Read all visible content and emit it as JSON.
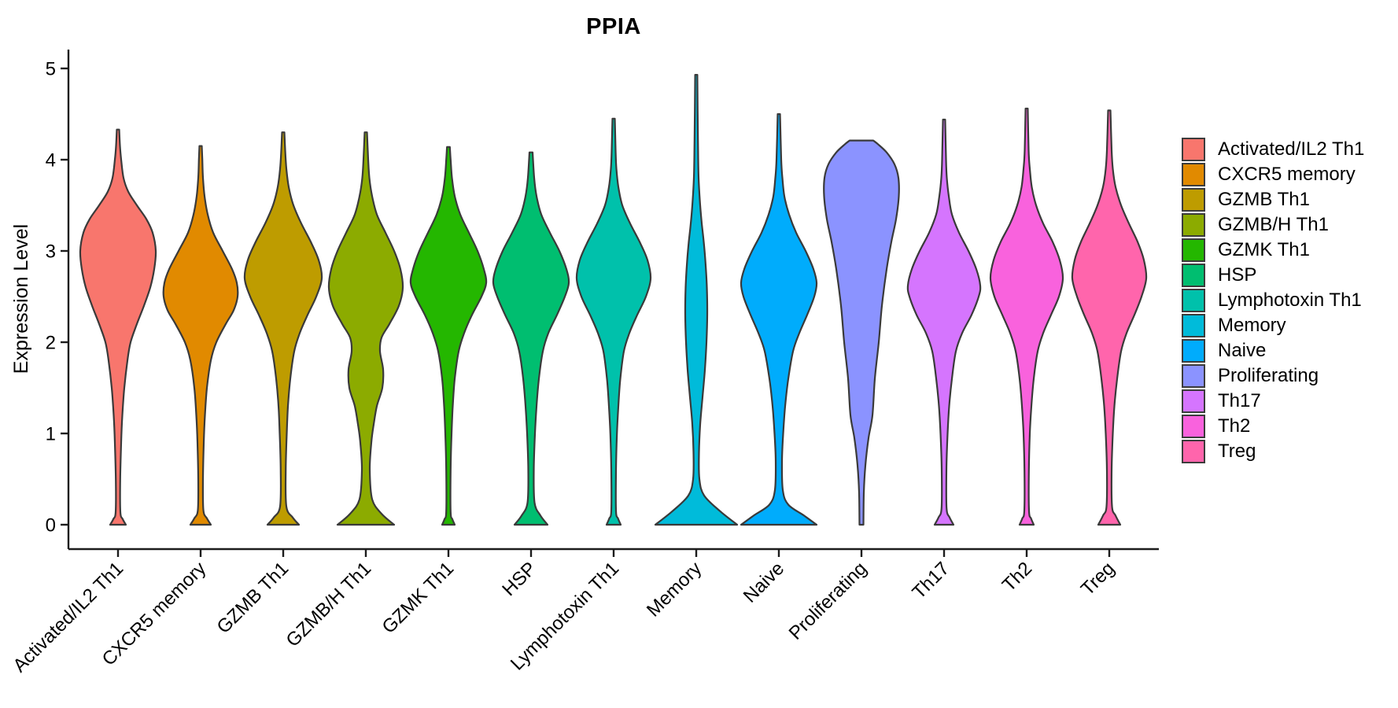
{
  "title": "PPIA",
  "y_axis": {
    "label": "Expression Level",
    "ticks": [
      "0",
      "1",
      "2",
      "3",
      "4",
      "5"
    ]
  },
  "x_axis": {
    "categories": [
      "Activated/IL2 Th1",
      "CXCR5 memory",
      "GZMB Th1",
      "GZMB/H Th1",
      "GZMK Th1",
      "HSP",
      "Lymphotoxin Th1",
      "Memory",
      "Naive",
      "Proliferating",
      "Th17",
      "Th2",
      "Treg"
    ]
  },
  "legend": {
    "items": [
      {
        "label": "Activated/IL2 Th1",
        "color": "#F8766D"
      },
      {
        "label": "CXCR5 memory",
        "color": "#E18A00"
      },
      {
        "label": "GZMB Th1",
        "color": "#BE9C00"
      },
      {
        "label": "GZMB/H Th1",
        "color": "#8CAB00"
      },
      {
        "label": "GZMK Th1",
        "color": "#24B700"
      },
      {
        "label": "HSP",
        "color": "#00BE70"
      },
      {
        "label": "Lymphotoxin Th1",
        "color": "#00C1AB"
      },
      {
        "label": "Memory",
        "color": "#00BBDA"
      },
      {
        "label": "Naive",
        "color": "#00ACFC"
      },
      {
        "label": "Proliferating",
        "color": "#8B93FF"
      },
      {
        "label": "Th17",
        "color": "#D575FE"
      },
      {
        "label": "Th2",
        "color": "#F962DD"
      },
      {
        "label": "Treg",
        "color": "#FF65AC"
      }
    ]
  },
  "chart_data": {
    "type": "violin",
    "title": "PPIA",
    "xlabel": "",
    "ylabel": "Expression Level",
    "ylim": [
      0,
      5
    ],
    "grid": false,
    "legend_position": "right",
    "outline_color": "#3A3A3A",
    "categories": [
      "Activated/IL2 Th1",
      "CXCR5 memory",
      "GZMB Th1",
      "GZMB/H Th1",
      "GZMK Th1",
      "HSP",
      "Lymphotoxin Th1",
      "Memory",
      "Naive",
      "Proliferating",
      "Th17",
      "Th2",
      "Treg"
    ],
    "series": [
      {
        "name": "Activated/IL2 Th1",
        "color": "#F8766D",
        "peak_expression": 4.33,
        "mode_expression": 3.0,
        "profile": [
          [
            0,
            10
          ],
          [
            0.06,
            6
          ],
          [
            0.14,
            3
          ],
          [
            0.5,
            2.8
          ],
          [
            0.9,
            4
          ],
          [
            1.2,
            5.5
          ],
          [
            1.5,
            8
          ],
          [
            1.8,
            12
          ],
          [
            2.0,
            16
          ],
          [
            2.2,
            24
          ],
          [
            2.4,
            33
          ],
          [
            2.6,
            41
          ],
          [
            2.8,
            46
          ],
          [
            3.0,
            48
          ],
          [
            3.2,
            44
          ],
          [
            3.35,
            36
          ],
          [
            3.5,
            24
          ],
          [
            3.65,
            13
          ],
          [
            3.8,
            7
          ],
          [
            4.0,
            4
          ],
          [
            4.15,
            2.5
          ],
          [
            4.33,
            1.5
          ]
        ]
      },
      {
        "name": "CXCR5 memory",
        "color": "#E18A00",
        "peak_expression": 4.15,
        "mode_expression": 2.5,
        "profile": [
          [
            0,
            13
          ],
          [
            0.07,
            8
          ],
          [
            0.16,
            3.5
          ],
          [
            0.5,
            3
          ],
          [
            0.9,
            4
          ],
          [
            1.2,
            5.5
          ],
          [
            1.5,
            8
          ],
          [
            1.8,
            13
          ],
          [
            2.0,
            20
          ],
          [
            2.2,
            32
          ],
          [
            2.35,
            42
          ],
          [
            2.5,
            47
          ],
          [
            2.65,
            46
          ],
          [
            2.8,
            40
          ],
          [
            3.0,
            28
          ],
          [
            3.2,
            16
          ],
          [
            3.4,
            9
          ],
          [
            3.6,
            5
          ],
          [
            3.8,
            3
          ],
          [
            4.0,
            2.2
          ],
          [
            4.15,
            1.5
          ]
        ]
      },
      {
        "name": "GZMB Th1",
        "color": "#BE9C00",
        "peak_expression": 4.3,
        "mode_expression": 2.7,
        "profile": [
          [
            0,
            20
          ],
          [
            0.08,
            12
          ],
          [
            0.2,
            4
          ],
          [
            0.6,
            3.2
          ],
          [
            1.0,
            4.5
          ],
          [
            1.3,
            6
          ],
          [
            1.6,
            9
          ],
          [
            1.9,
            14
          ],
          [
            2.1,
            21
          ],
          [
            2.3,
            31
          ],
          [
            2.5,
            42
          ],
          [
            2.7,
            49
          ],
          [
            2.9,
            45
          ],
          [
            3.1,
            35
          ],
          [
            3.3,
            23
          ],
          [
            3.5,
            13
          ],
          [
            3.7,
            7
          ],
          [
            3.9,
            4
          ],
          [
            4.1,
            2.5
          ],
          [
            4.3,
            1.5
          ]
        ]
      },
      {
        "name": "GZMB/H Th1",
        "color": "#8CAB00",
        "peak_expression": 4.3,
        "mode_expression": 2.65,
        "profile": [
          [
            0,
            36
          ],
          [
            0.12,
            20
          ],
          [
            0.28,
            8
          ],
          [
            0.6,
            5
          ],
          [
            0.9,
            7
          ],
          [
            1.1,
            10
          ],
          [
            1.3,
            14
          ],
          [
            1.5,
            21
          ],
          [
            1.7,
            22
          ],
          [
            1.9,
            18
          ],
          [
            2.05,
            20
          ],
          [
            2.2,
            30
          ],
          [
            2.4,
            42
          ],
          [
            2.6,
            47
          ],
          [
            2.8,
            44
          ],
          [
            3.0,
            36
          ],
          [
            3.2,
            25
          ],
          [
            3.4,
            14
          ],
          [
            3.6,
            8
          ],
          [
            3.8,
            4.5
          ],
          [
            4.0,
            3
          ],
          [
            4.3,
            1.5
          ]
        ]
      },
      {
        "name": "GZMK Th1",
        "color": "#24B700",
        "peak_expression": 4.14,
        "mode_expression": 2.65,
        "profile": [
          [
            0,
            8
          ],
          [
            0.06,
            5
          ],
          [
            0.14,
            2.8
          ],
          [
            0.6,
            2.8
          ],
          [
            1.0,
            4
          ],
          [
            1.3,
            5.5
          ],
          [
            1.6,
            8
          ],
          [
            1.9,
            13
          ],
          [
            2.1,
            20
          ],
          [
            2.3,
            30
          ],
          [
            2.5,
            42
          ],
          [
            2.65,
            48
          ],
          [
            2.8,
            45
          ],
          [
            3.0,
            37
          ],
          [
            3.2,
            26
          ],
          [
            3.4,
            15
          ],
          [
            3.6,
            8
          ],
          [
            3.8,
            4.5
          ],
          [
            4.0,
            2.8
          ],
          [
            4.14,
            1.8
          ]
        ]
      },
      {
        "name": "HSP",
        "color": "#00BE70",
        "peak_expression": 4.08,
        "mode_expression": 2.65,
        "profile": [
          [
            0,
            21
          ],
          [
            0.1,
            12
          ],
          [
            0.24,
            4.5
          ],
          [
            0.6,
            3.5
          ],
          [
            1.0,
            5
          ],
          [
            1.3,
            7
          ],
          [
            1.6,
            10
          ],
          [
            1.9,
            15
          ],
          [
            2.1,
            22
          ],
          [
            2.3,
            33
          ],
          [
            2.5,
            43
          ],
          [
            2.65,
            48
          ],
          [
            2.8,
            45
          ],
          [
            3.0,
            36
          ],
          [
            3.2,
            24
          ],
          [
            3.4,
            13
          ],
          [
            3.6,
            7
          ],
          [
            3.8,
            4
          ],
          [
            4.08,
            2
          ]
        ]
      },
      {
        "name": "Lymphotoxin Th1",
        "color": "#00C1AB",
        "peak_expression": 4.45,
        "mode_expression": 2.7,
        "profile": [
          [
            0,
            9
          ],
          [
            0.07,
            5.5
          ],
          [
            0.15,
            3
          ],
          [
            0.6,
            3
          ],
          [
            1.0,
            4.2
          ],
          [
            1.3,
            6
          ],
          [
            1.6,
            8.5
          ],
          [
            1.9,
            13
          ],
          [
            2.1,
            20
          ],
          [
            2.3,
            30
          ],
          [
            2.5,
            41
          ],
          [
            2.7,
            47
          ],
          [
            2.9,
            43
          ],
          [
            3.1,
            33
          ],
          [
            3.3,
            21
          ],
          [
            3.5,
            11
          ],
          [
            3.7,
            6
          ],
          [
            3.9,
            3.5
          ],
          [
            4.1,
            2.5
          ],
          [
            4.45,
            1.5
          ]
        ]
      },
      {
        "name": "Memory",
        "color": "#00BBDA",
        "peak_expression": 4.93,
        "mode_expression": 0.0,
        "profile": [
          [
            0,
            52
          ],
          [
            0.15,
            30
          ],
          [
            0.32,
            10
          ],
          [
            0.5,
            4
          ],
          [
            0.8,
            3.5
          ],
          [
            1.1,
            5
          ],
          [
            1.4,
            8
          ],
          [
            1.7,
            11
          ],
          [
            2.0,
            13
          ],
          [
            2.3,
            14
          ],
          [
            2.6,
            13.5
          ],
          [
            2.9,
            11.5
          ],
          [
            3.1,
            9.5
          ],
          [
            3.3,
            7
          ],
          [
            3.5,
            5
          ],
          [
            3.8,
            3
          ],
          [
            4.2,
            2.2
          ],
          [
            4.93,
            1.4
          ]
        ]
      },
      {
        "name": "Naive",
        "color": "#00ACFC",
        "peak_expression": 4.5,
        "mode_expression": 2.6,
        "profile": [
          [
            0,
            48
          ],
          [
            0.1,
            32
          ],
          [
            0.22,
            12
          ],
          [
            0.38,
            5
          ],
          [
            0.7,
            4
          ],
          [
            1.0,
            5.5
          ],
          [
            1.3,
            8
          ],
          [
            1.6,
            12
          ],
          [
            1.9,
            18
          ],
          [
            2.1,
            26
          ],
          [
            2.3,
            36
          ],
          [
            2.5,
            45
          ],
          [
            2.65,
            48
          ],
          [
            2.8,
            44
          ],
          [
            3.0,
            34
          ],
          [
            3.2,
            22
          ],
          [
            3.4,
            13
          ],
          [
            3.6,
            7
          ],
          [
            3.8,
            4.5
          ],
          [
            4.0,
            3
          ],
          [
            4.5,
            1.5
          ]
        ]
      },
      {
        "name": "Proliferating",
        "color": "#8B93FF",
        "peak_expression": 4.21,
        "mode_expression": 3.7,
        "profile": [
          [
            0,
            2.5
          ],
          [
            0.35,
            3
          ],
          [
            0.65,
            5
          ],
          [
            0.95,
            9
          ],
          [
            1.2,
            14
          ],
          [
            1.6,
            17
          ],
          [
            2.0,
            22
          ],
          [
            2.4,
            26
          ],
          [
            2.8,
            32
          ],
          [
            3.1,
            38
          ],
          [
            3.35,
            44
          ],
          [
            3.6,
            47.5
          ],
          [
            3.8,
            47
          ],
          [
            3.95,
            42
          ],
          [
            4.08,
            32
          ],
          [
            4.17,
            21
          ],
          [
            4.21,
            15
          ]
        ]
      },
      {
        "name": "Th17",
        "color": "#D575FE",
        "peak_expression": 4.44,
        "mode_expression": 2.6,
        "profile": [
          [
            0,
            12
          ],
          [
            0.08,
            7
          ],
          [
            0.18,
            3.2
          ],
          [
            0.6,
            3
          ],
          [
            1.0,
            4.5
          ],
          [
            1.3,
            6.5
          ],
          [
            1.6,
            10
          ],
          [
            1.9,
            15
          ],
          [
            2.1,
            23
          ],
          [
            2.3,
            35
          ],
          [
            2.5,
            44
          ],
          [
            2.62,
            46
          ],
          [
            2.8,
            41
          ],
          [
            3.0,
            31
          ],
          [
            3.2,
            19
          ],
          [
            3.4,
            10
          ],
          [
            3.6,
            6
          ],
          [
            3.8,
            3.5
          ],
          [
            4.0,
            2.5
          ],
          [
            4.44,
            1.4
          ]
        ]
      },
      {
        "name": "Th2",
        "color": "#F962DD",
        "peak_expression": 4.56,
        "mode_expression": 2.65,
        "profile": [
          [
            0,
            9
          ],
          [
            0.07,
            5.5
          ],
          [
            0.15,
            3
          ],
          [
            0.6,
            2.8
          ],
          [
            1.0,
            4
          ],
          [
            1.3,
            6
          ],
          [
            1.6,
            9
          ],
          [
            1.9,
            14
          ],
          [
            2.1,
            21
          ],
          [
            2.3,
            31
          ],
          [
            2.5,
            41
          ],
          [
            2.7,
            46
          ],
          [
            2.9,
            42
          ],
          [
            3.1,
            33
          ],
          [
            3.3,
            21
          ],
          [
            3.5,
            12
          ],
          [
            3.7,
            6.5
          ],
          [
            3.9,
            4
          ],
          [
            4.1,
            2.5
          ],
          [
            4.56,
            1.4
          ]
        ]
      },
      {
        "name": "Treg",
        "color": "#FF65AC",
        "peak_expression": 4.54,
        "mode_expression": 2.7,
        "profile": [
          [
            0,
            14
          ],
          [
            0.1,
            8
          ],
          [
            0.2,
            3.5
          ],
          [
            0.6,
            3
          ],
          [
            1.0,
            4.5
          ],
          [
            1.3,
            6.5
          ],
          [
            1.6,
            10
          ],
          [
            1.9,
            15
          ],
          [
            2.1,
            22
          ],
          [
            2.3,
            32
          ],
          [
            2.5,
            41
          ],
          [
            2.7,
            47
          ],
          [
            2.9,
            44
          ],
          [
            3.1,
            36
          ],
          [
            3.3,
            25
          ],
          [
            3.5,
            15
          ],
          [
            3.7,
            8
          ],
          [
            3.9,
            4.5
          ],
          [
            4.1,
            3
          ],
          [
            4.54,
            1.5
          ]
        ]
      }
    ]
  }
}
